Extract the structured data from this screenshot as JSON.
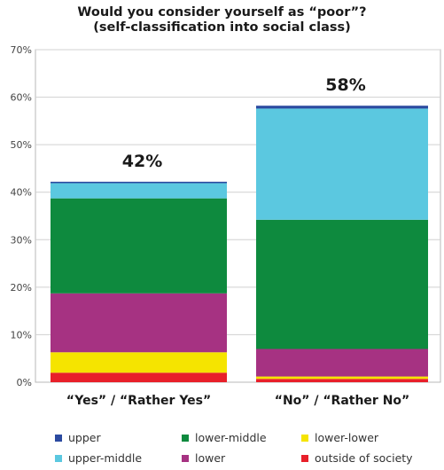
{
  "chart_data": {
    "type": "bar",
    "stacked": true,
    "title": "Would you consider yourself as “poor”?",
    "subtitle": "(self-classification into social class)",
    "categories": [
      "“Yes” / “Rather Yes”",
      "“No” / “Rather No”"
    ],
    "totals_labels": [
      "42%",
      "58%"
    ],
    "ylim": [
      0,
      70
    ],
    "yticks": [
      "0%",
      "10%",
      "20%",
      "30%",
      "40%",
      "50%",
      "60%",
      "70%"
    ],
    "grid": true,
    "legend_position": "bottom",
    "series": [
      {
        "name": "outside of society",
        "color": "#e8202a",
        "values": [
          2,
          0.7
        ]
      },
      {
        "name": "lower-lower",
        "color": "#f5e400",
        "values": [
          4.3,
          0.5
        ]
      },
      {
        "name": "lower",
        "color": "#a63282",
        "values": [
          12.4,
          5.8
        ]
      },
      {
        "name": "lower-middle",
        "color": "#0e8a3e",
        "values": [
          20,
          27.2
        ]
      },
      {
        "name": "upper-middle",
        "color": "#5bc8e0",
        "values": [
          3.2,
          23.4
        ]
      },
      {
        "name": "upper",
        "color": "#2b4aa0",
        "values": [
          0.3,
          0.6
        ]
      }
    ],
    "legend_order": [
      "upper",
      "lower-middle",
      "lower-lower",
      "upper-middle",
      "lower",
      "outside of society"
    ]
  }
}
